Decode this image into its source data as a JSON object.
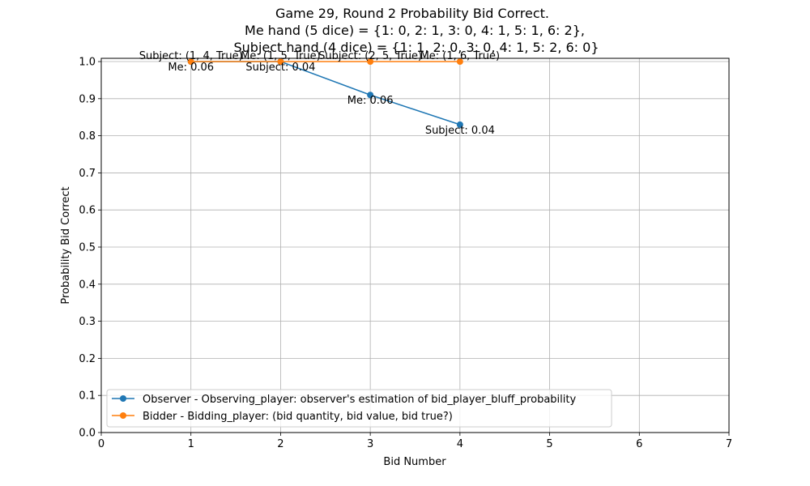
{
  "chart_data": {
    "type": "line",
    "title_lines": [
      "Game 29, Round 2 Probability Bid Correct.",
      "Me hand (5 dice) = {1: 0, 2: 1, 3: 0, 4: 1, 5: 1, 6: 2},",
      "Subject hand (4 dice) = {1: 1, 2: 0, 3: 0, 4: 1, 5: 2, 6: 0}"
    ],
    "xlabel": "Bid Number",
    "ylabel": "Probability Bid Correct",
    "xlim": [
      0,
      7
    ],
    "ylim": [
      0,
      1.0
    ],
    "xticks": [
      "0",
      "1",
      "2",
      "3",
      "4",
      "5",
      "6",
      "7"
    ],
    "yticks": [
      "0.0",
      "0.1",
      "0.2",
      "0.3",
      "0.4",
      "0.5",
      "0.6",
      "0.7",
      "0.8",
      "0.9",
      "1.0"
    ],
    "grid": true,
    "legend_position": "lower-left",
    "series": [
      {
        "name": "Observer - Observing_player: observer's estimation of bid_player_bluff_probability",
        "color": "#1f77b4",
        "x": [
          1,
          2,
          3,
          4
        ],
        "y": [
          1.0,
          1.0,
          0.91,
          0.83
        ],
        "labels": [
          "Me: 0.06",
          "Subject: 0.04",
          "Me: 0.06",
          "Subject: 0.04"
        ]
      },
      {
        "name": "Bidder -  Bidding_player: (bid quantity, bid value, bid true?)",
        "color": "#ff7f0e",
        "x": [
          1,
          2,
          3,
          4
        ],
        "y": [
          1.0,
          1.0,
          1.0,
          1.0
        ],
        "labels": [
          "Subject: (1, 4, True)",
          "Me: (1, 5, True)",
          "Subject: (2, 5, True)",
          "Me: (1, 6, True)"
        ]
      }
    ]
  }
}
